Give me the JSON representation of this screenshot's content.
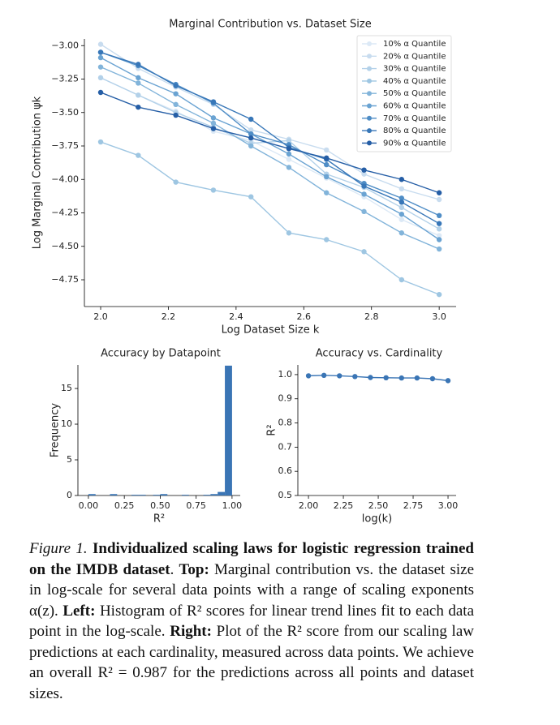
{
  "chart_data": [
    {
      "type": "line",
      "title": "Marginal Contribution vs. Dataset Size",
      "x_label": "Log Dataset Size k",
      "y_label": "Log Marginal Contribution ψk",
      "x": [
        2.0,
        2.111,
        2.222,
        2.333,
        2.444,
        2.556,
        2.667,
        2.778,
        2.889,
        3.0
      ],
      "series": [
        {
          "name": "10% α Quantile",
          "color": "#dce9f6",
          "values": [
            -3.24,
            -3.37,
            -3.49,
            -3.64,
            -3.71,
            -3.85,
            -3.99,
            -4.13,
            -4.3,
            -4.42
          ]
        },
        {
          "name": "20% α Quantile",
          "color": "#c8dcef",
          "values": [
            -2.99,
            -3.17,
            -3.31,
            -3.44,
            -3.63,
            -3.7,
            -3.78,
            -3.96,
            -4.07,
            -4.15
          ]
        },
        {
          "name": "30% α Quantile",
          "color": "#b3d1e9",
          "values": [
            -3.24,
            -3.37,
            -3.5,
            -3.61,
            -3.73,
            -3.71,
            -3.96,
            -4.06,
            -4.21,
            -4.37
          ]
        },
        {
          "name": "40% α Quantile",
          "color": "#9ec6e2",
          "values": [
            -3.72,
            -3.82,
            -4.02,
            -4.08,
            -4.13,
            -4.4,
            -4.45,
            -4.54,
            -4.75,
            -4.86
          ]
        },
        {
          "name": "50% α Quantile",
          "color": "#82b4da",
          "values": [
            -3.16,
            -3.28,
            -3.44,
            -3.58,
            -3.75,
            -3.91,
            -4.1,
            -4.24,
            -4.4,
            -4.52
          ]
        },
        {
          "name": "60% α Quantile",
          "color": "#6aa3d2",
          "values": [
            -3.09,
            -3.24,
            -3.36,
            -3.54,
            -3.66,
            -3.81,
            -3.98,
            -4.11,
            -4.26,
            -4.45
          ]
        },
        {
          "name": "70% α Quantile",
          "color": "#4f8dc6",
          "values": [
            -3.05,
            -3.15,
            -3.29,
            -3.43,
            -3.66,
            -3.74,
            -3.89,
            -4.03,
            -4.14,
            -4.27
          ]
        },
        {
          "name": "80% α Quantile",
          "color": "#3877b8",
          "values": [
            -3.05,
            -3.14,
            -3.3,
            -3.42,
            -3.55,
            -3.76,
            -3.85,
            -4.05,
            -4.17,
            -4.33
          ]
        },
        {
          "name": "90% α Quantile",
          "color": "#255ea6",
          "values": [
            -3.35,
            -3.46,
            -3.52,
            -3.62,
            -3.69,
            -3.77,
            -3.84,
            -3.93,
            -4.0,
            -4.1
          ]
        }
      ],
      "xlim": [
        1.952,
        3.05
      ],
      "ylim": [
        -4.95,
        -2.95
      ],
      "xticks": [
        {
          "value": 2.0,
          "label": "2.0"
        },
        {
          "value": 2.2,
          "label": "2.2"
        },
        {
          "value": 2.4,
          "label": "2.4"
        },
        {
          "value": 2.6,
          "label": "2.6"
        },
        {
          "value": 2.8,
          "label": "2.8"
        },
        {
          "value": 3.0,
          "label": "3.0"
        }
      ],
      "yticks": [
        {
          "value": -3.0,
          "label": "−3.00"
        },
        {
          "value": -3.25,
          "label": "−3.25"
        },
        {
          "value": -3.5,
          "label": "−3.50"
        },
        {
          "value": -3.75,
          "label": "−3.75"
        },
        {
          "value": -4.0,
          "label": "−4.00"
        },
        {
          "value": -4.25,
          "label": "−4.25"
        },
        {
          "value": -4.5,
          "label": "−4.50"
        },
        {
          "value": -4.75,
          "label": "−4.75"
        }
      ],
      "legend": "upper right",
      "grid": false
    },
    {
      "type": "histogram",
      "title": "Accuracy by Datapoint",
      "x_label": "R²",
      "y_label": "Frequency",
      "color": "#3a75b5",
      "bins": [
        0,
        0.05,
        0.1,
        0.15,
        0.2,
        0.25,
        0.3,
        0.35,
        0.4,
        0.45,
        0.5,
        0.55,
        0.6,
        0.65,
        0.7,
        0.75,
        0.8,
        0.85,
        0.9,
        0.95,
        1.0
      ],
      "counts": [
        0.2,
        0,
        0,
        0.2,
        0,
        0,
        0.1,
        0.1,
        0,
        0.1,
        0.2,
        0,
        0,
        0.1,
        0,
        0,
        0.1,
        0.2,
        0.5,
        18.2
      ],
      "xlim": [
        -0.073,
        1.057
      ],
      "ylim": [
        0,
        18.3
      ],
      "xticks": [
        {
          "value": 0,
          "label": "0.00"
        },
        {
          "value": 0.25,
          "label": "0.25"
        },
        {
          "value": 0.5,
          "label": "0.50"
        },
        {
          "value": 0.75,
          "label": "0.75"
        },
        {
          "value": 1.0,
          "label": "1.00"
        }
      ],
      "yticks": [
        0,
        5,
        10,
        15
      ],
      "grid": false
    },
    {
      "type": "line",
      "title": "Accuracy vs. Cardinality",
      "x_label": "log(k)",
      "y_label": "R²",
      "color": "#3a75b5",
      "x": [
        2.0,
        2.111,
        2.222,
        2.333,
        2.444,
        2.556,
        2.667,
        2.778,
        2.889,
        3.0
      ],
      "values": [
        0.995,
        0.997,
        0.995,
        0.992,
        0.988,
        0.987,
        0.986,
        0.986,
        0.983,
        0.975
      ],
      "xlim": [
        1.924,
        3.058
      ],
      "ylim": [
        0.5,
        1.04
      ],
      "xticks": [
        {
          "value": 2.0,
          "label": "2.00"
        },
        {
          "value": 2.25,
          "label": "2.25"
        },
        {
          "value": 2.5,
          "label": "2.50"
        },
        {
          "value": 2.75,
          "label": "2.75"
        },
        {
          "value": 3.0,
          "label": "3.00"
        }
      ],
      "yticks": [
        0.5,
        0.6,
        0.7,
        0.8,
        0.9,
        {
          "value": 1.0,
          "label": "1.0"
        }
      ],
      "grid": false
    }
  ],
  "caption": [
    {
      "text": "Figure 1. ",
      "style": "italic"
    },
    {
      "text": "Individualized scaling laws for logistic regression trained on the IMDB dataset",
      "style": "bold"
    },
    {
      "text": ". ",
      "style": "normal"
    },
    {
      "text": "Top:",
      "style": "bold"
    },
    {
      "text": " Marginal contribution vs. the dataset size in log-scale for several data points with a range of scaling exponents α(z). ",
      "style": "normal"
    },
    {
      "text": "Left:",
      "style": "bold"
    },
    {
      "text": " Histogram of R² scores for linear trend lines fit to each data point in the log-scale. ",
      "style": "normal"
    },
    {
      "text": "Right:",
      "style": "bold"
    },
    {
      "text": " Plot of the R² score from our scaling law predictions at each cardinality, measured across data points. We achieve an overall R² = 0.987 for the predictions across all points and dataset sizes.",
      "style": "normal"
    }
  ]
}
